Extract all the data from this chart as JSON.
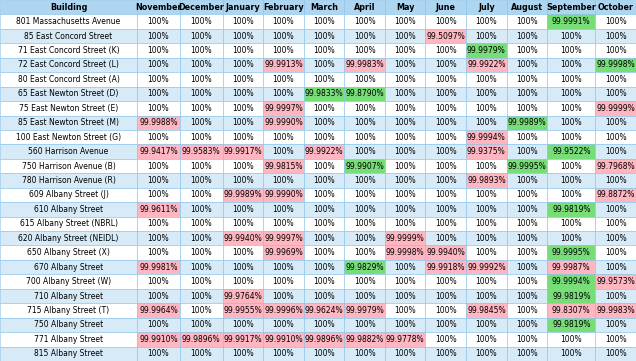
{
  "columns": [
    "Building",
    "November",
    "December",
    "January",
    "February",
    "March",
    "April",
    "May",
    "June",
    "July",
    "August",
    "September",
    "October"
  ],
  "rows": [
    [
      "801 Massachusetts Avenue",
      "100%",
      "100%",
      "100%",
      "100%",
      "100%",
      "100%",
      "100%",
      "100%",
      "100%",
      "100%",
      "99.9991%",
      "100%"
    ],
    [
      "85 East Concord Street",
      "100%",
      "100%",
      "100%",
      "100%",
      "100%",
      "100%",
      "100%",
      "99.5097%",
      "100%",
      "100%",
      "100%",
      "100%"
    ],
    [
      "71 East Concord Street (K)",
      "100%",
      "100%",
      "100%",
      "100%",
      "100%",
      "100%",
      "100%",
      "100%",
      "99.9979%",
      "100%",
      "100%",
      "100%"
    ],
    [
      "72 East Concord Street (L)",
      "100%",
      "100%",
      "100%",
      "99.9913%",
      "100%",
      "99.9983%",
      "100%",
      "100%",
      "99.9922%",
      "100%",
      "100%",
      "99.9998%"
    ],
    [
      "80 East Concord Street (A)",
      "100%",
      "100%",
      "100%",
      "100%",
      "100%",
      "100%",
      "100%",
      "100%",
      "100%",
      "100%",
      "100%",
      "100%"
    ],
    [
      "65 East Newton Street (D)",
      "100%",
      "100%",
      "100%",
      "100%",
      "99.9833%",
      "99.8790%",
      "100%",
      "100%",
      "100%",
      "100%",
      "100%",
      "100%"
    ],
    [
      "75 East Newton Street (E)",
      "100%",
      "100%",
      "100%",
      "99.9997%",
      "100%",
      "100%",
      "100%",
      "100%",
      "100%",
      "100%",
      "100%",
      "99.9999%"
    ],
    [
      "85 East Newton Street (M)",
      "99.9988%",
      "100%",
      "100%",
      "99.9990%",
      "100%",
      "100%",
      "100%",
      "100%",
      "100%",
      "99.9989%",
      "100%",
      "100%"
    ],
    [
      "100 East Newton Street (G)",
      "100%",
      "100%",
      "100%",
      "100%",
      "100%",
      "100%",
      "100%",
      "100%",
      "99.9994%",
      "100%",
      "100%",
      "100%"
    ],
    [
      "560 Harrison Avenue",
      "99.9417%",
      "99.9583%",
      "99.9917%",
      "100%",
      "99.9922%",
      "100%",
      "100%",
      "100%",
      "99.9375%",
      "100%",
      "99.9522%",
      "100%"
    ],
    [
      "750 Harrison Avenue (B)",
      "100%",
      "100%",
      "100%",
      "99.9815%",
      "100%",
      "99.9907%",
      "100%",
      "100%",
      "100%",
      "99.9995%",
      "100%",
      "99.7968%"
    ],
    [
      "780 Harrison Avenue (R)",
      "100%",
      "100%",
      "100%",
      "100%",
      "100%",
      "100%",
      "100%",
      "100%",
      "99.9893%",
      "100%",
      "100%",
      "100%"
    ],
    [
      "609 Albany Street (J)",
      "100%",
      "100%",
      "99.9989%",
      "99.9990%",
      "100%",
      "100%",
      "100%",
      "100%",
      "100%",
      "100%",
      "100%",
      "99.8872%"
    ],
    [
      "610 Albany Street",
      "99.9611%",
      "100%",
      "100%",
      "100%",
      "100%",
      "100%",
      "100%",
      "100%",
      "100%",
      "100%",
      "99.9819%",
      "100%"
    ],
    [
      "615 Albany Street (NBRL)",
      "100%",
      "100%",
      "100%",
      "100%",
      "100%",
      "100%",
      "100%",
      "100%",
      "100%",
      "100%",
      "100%",
      "100%"
    ],
    [
      "620 Albany Street (NEIDL)",
      "100%",
      "100%",
      "99.9940%",
      "99.9997%",
      "100%",
      "100%",
      "99.9999%",
      "100%",
      "100%",
      "100%",
      "100%",
      "100%"
    ],
    [
      "650 Albany Street (X)",
      "100%",
      "100%",
      "100%",
      "99.9969%",
      "100%",
      "100%",
      "99.9998%",
      "99.9940%",
      "100%",
      "100%",
      "99.9995%",
      "100%"
    ],
    [
      "670 Albany Street",
      "99.9981%",
      "100%",
      "100%",
      "100%",
      "100%",
      "99.9829%",
      "100%",
      "99.9918%",
      "99.9992%",
      "100%",
      "99.9987%",
      "100%"
    ],
    [
      "700 Albany Street (W)",
      "100%",
      "100%",
      "100%",
      "100%",
      "100%",
      "100%",
      "100%",
      "100%",
      "100%",
      "100%",
      "99.9994%",
      "99.9573%"
    ],
    [
      "710 Albany Street",
      "100%",
      "100%",
      "99.9764%",
      "100%",
      "100%",
      "100%",
      "100%",
      "100%",
      "100%",
      "100%",
      "99.9819%",
      "100%"
    ],
    [
      "715 Albany Street (T)",
      "99.9964%",
      "100%",
      "99.9955%",
      "99.9996%",
      "99.9624%",
      "99.9979%",
      "100%",
      "100%",
      "99.9845%",
      "100%",
      "99.8307%",
      "99.9983%"
    ],
    [
      "750 Albany Street",
      "100%",
      "100%",
      "100%",
      "100%",
      "100%",
      "100%",
      "100%",
      "100%",
      "100%",
      "100%",
      "99.9819%",
      "100%"
    ],
    [
      "771 Albany Street",
      "99.9910%",
      "99.9896%",
      "99.9917%",
      "99.9910%",
      "99.9896%",
      "99.9882%",
      "99.9778%",
      "100%",
      "100%",
      "100%",
      "100%",
      "100%"
    ],
    [
      "815 Albany Street",
      "100%",
      "100%",
      "100%",
      "100%",
      "100%",
      "100%",
      "100%",
      "100%",
      "100%",
      "100%",
      "100%",
      "100%"
    ]
  ],
  "cell_colors": {
    "0,10": "#77DD77",
    "1,7": "#FFB6C1",
    "2,8": "#77DD77",
    "3,3": "#FFB6C1",
    "3,5": "#FFB6C1",
    "3,8": "#FFB6C1",
    "3,11": "#77DD77",
    "5,4": "#77DD77",
    "5,5": "#77DD77",
    "6,3": "#FFB6C1",
    "6,11": "#FFB6C1",
    "7,0": "#FFB6C1",
    "7,3": "#FFB6C1",
    "7,9": "#77DD77",
    "8,8": "#FFB6C1",
    "9,0": "#FFB6C1",
    "9,1": "#FFB6C1",
    "9,2": "#FFB6C1",
    "9,4": "#FFB6C1",
    "9,8": "#FFB6C1",
    "9,10": "#77DD77",
    "10,3": "#FFB6C1",
    "10,5": "#77DD77",
    "10,9": "#77DD77",
    "10,11": "#FFB6C1",
    "11,8": "#FFB6C1",
    "12,2": "#FFB6C1",
    "12,3": "#FFB6C1",
    "12,11": "#FFB6C1",
    "13,0": "#FFB6C1",
    "13,10": "#77DD77",
    "15,2": "#FFB6C1",
    "15,3": "#FFB6C1",
    "15,6": "#FFB6C1",
    "16,3": "#FFB6C1",
    "16,6": "#FFB6C1",
    "16,7": "#FFB6C1",
    "16,10": "#77DD77",
    "17,0": "#FFB6C1",
    "17,5": "#77DD77",
    "17,7": "#FFB6C1",
    "17,8": "#FFB6C1",
    "17,10": "#FFB6C1",
    "18,10": "#77DD77",
    "18,11": "#FFB6C1",
    "19,2": "#FFB6C1",
    "19,10": "#77DD77",
    "20,0": "#FFB6C1",
    "20,2": "#FFB6C1",
    "20,3": "#FFB6C1",
    "20,4": "#FFB6C1",
    "20,5": "#FFB6C1",
    "20,8": "#FFB6C1",
    "20,10": "#FFB6C1",
    "20,11": "#FFB6C1",
    "21,10": "#77DD77",
    "22,0": "#FFB6C1",
    "22,1": "#FFB6C1",
    "22,2": "#FFB6C1",
    "22,3": "#FFB6C1",
    "22,4": "#FFB6C1",
    "22,5": "#FFB6C1",
    "22,6": "#FFB6C1"
  },
  "header_bg": "#AED6F1",
  "row_bg_even": "#FFFFFF",
  "row_bg_odd": "#D6EAF8",
  "header_text_color": "#000000",
  "grid_color": "#85C1E9",
  "font_size": 5.5,
  "header_font_size": 5.8,
  "fig_width": 6.36,
  "fig_height": 3.61,
  "dpi": 100,
  "col_widths_rel": [
    2.5,
    0.78,
    0.78,
    0.74,
    0.74,
    0.74,
    0.74,
    0.74,
    0.74,
    0.74,
    0.74,
    0.88,
    0.74
  ]
}
